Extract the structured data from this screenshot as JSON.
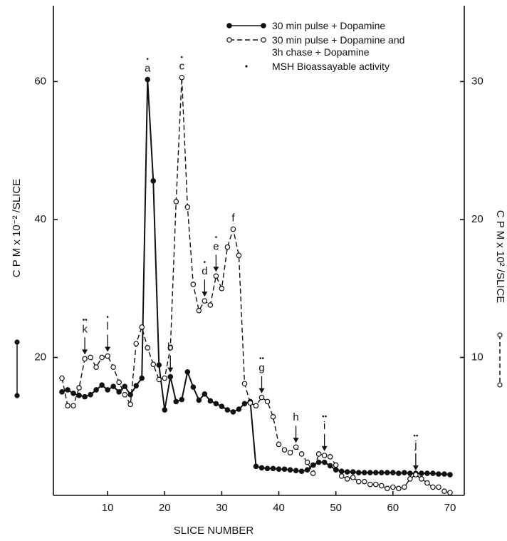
{
  "chart_data": {
    "type": "line",
    "xlabel": "SLICE NUMBER",
    "ylabel": "C P M  x 10⁻² /SLICE",
    "y2label": "C P M  x 10² /SLICE",
    "activity_label": "MSH Bioassayable activity",
    "x": [
      2,
      3,
      4,
      5,
      6,
      7,
      8,
      9,
      10,
      11,
      12,
      13,
      14,
      15,
      16,
      17,
      18,
      19,
      20,
      21,
      22,
      23,
      24,
      25,
      26,
      27,
      28,
      29,
      30,
      31,
      32,
      33,
      34,
      35,
      36,
      37,
      38,
      39,
      40,
      41,
      42,
      43,
      44,
      45,
      46,
      47,
      48,
      49,
      50,
      51,
      52,
      53,
      54,
      55,
      56,
      57,
      58,
      59,
      60,
      61,
      62,
      63,
      64,
      65,
      66,
      67,
      68,
      69,
      70
    ],
    "series": [
      {
        "name": "30 min pulse + Dopamine",
        "color": "#111111",
        "line": "solid",
        "marker": "filled",
        "axis": "y",
        "values": [
          15,
          15.3,
          14.8,
          14.5,
          14.3,
          14.6,
          15.3,
          16,
          15.3,
          15.8,
          15,
          15.8,
          14.6,
          15.9,
          17,
          60.3,
          45.6,
          18.9,
          12.4,
          17.2,
          13.6,
          13.9,
          17.9,
          15.7,
          13.8,
          14.7,
          13.7,
          13.3,
          12.9,
          12.4,
          12.1,
          12.5,
          13.3,
          13.6,
          4.2,
          4,
          3.9,
          3.9,
          3.8,
          3.8,
          3.7,
          3.6,
          3.5,
          3.7,
          4.4,
          4.8,
          4.8,
          4.3,
          3.7,
          3.5,
          3.4,
          3.4,
          3.3,
          3.3,
          3.3,
          3.3,
          3.3,
          3.3,
          3.3,
          3.2,
          3.3,
          3.2,
          3.2,
          3.2,
          3.2,
          3.2,
          3.1,
          3.1,
          3
        ]
      },
      {
        "name": "30 min pulse + Dopamine and 3h chase + Dopamine",
        "color": "#111111",
        "line": "dashed",
        "marker": "open",
        "axis": "y2",
        "values": [
          8.5,
          6.5,
          6.5,
          7.8,
          9.9,
          10,
          9.3,
          10,
          10.1,
          9.3,
          8.2,
          7.3,
          6.6,
          11,
          12.2,
          10.7,
          9.5,
          8.4,
          8.5,
          10.7,
          21.3,
          30.3,
          20.9,
          15.3,
          13.4,
          14.1,
          13.8,
          15.9,
          15,
          18,
          19.3,
          17.4,
          8.1,
          6.7,
          6.5,
          7.1,
          6.8,
          5.7,
          3.7,
          3.3,
          3.1,
          3.5,
          3,
          2.4,
          1.6,
          3,
          2.9,
          2.8,
          2.2,
          1.4,
          1.2,
          1.3,
          1,
          1,
          0.8,
          0.8,
          0.7,
          0.5,
          0.6,
          0.5,
          0.6,
          1.2,
          1.5,
          1.2,
          0.9,
          0.6,
          0.6,
          0.3,
          0.2
        ]
      }
    ],
    "xlim": [
      0.5,
      72.5
    ],
    "xticks": [
      10,
      20,
      30,
      40,
      50,
      60,
      70
    ],
    "ylim": [
      0,
      71
    ],
    "yticks": [
      20,
      40,
      60
    ],
    "y2lim": [
      0,
      35.5
    ],
    "y2ticks": [
      10,
      20,
      30
    ],
    "grid": false,
    "annotations": [
      {
        "text": "a",
        "mark": "•",
        "series": 0,
        "x": 17,
        "arrow": false
      },
      {
        "text": "b",
        "series": 0,
        "x": 21,
        "arrow": true
      },
      {
        "text": "c",
        "mark": "•",
        "series": 1,
        "x": 23,
        "arrow": false
      },
      {
        "text": "d",
        "mark": "•",
        "series": 1,
        "x": 27,
        "arrow": true
      },
      {
        "text": "e",
        "mark": "•",
        "series": 1,
        "x": 29,
        "arrow": true
      },
      {
        "text": "f",
        "series": 1,
        "x": 32,
        "arrow": false
      },
      {
        "text": "g",
        "mark": "••",
        "series": 1,
        "x": 37,
        "arrow": true
      },
      {
        "text": "h",
        "series": 1,
        "x": 43,
        "arrow": true
      },
      {
        "text": "i",
        "mark": "••",
        "series": 1,
        "x": 48,
        "arrow": true
      },
      {
        "text": "j",
        "mark": "••",
        "series": 1,
        "x": 64,
        "arrow": true
      },
      {
        "text": "k",
        "mark": "••",
        "series": 1,
        "x": 6,
        "arrow": true
      },
      {
        "text": "l",
        "mark": "•",
        "series": 1,
        "x": 10,
        "arrow": true
      }
    ]
  }
}
